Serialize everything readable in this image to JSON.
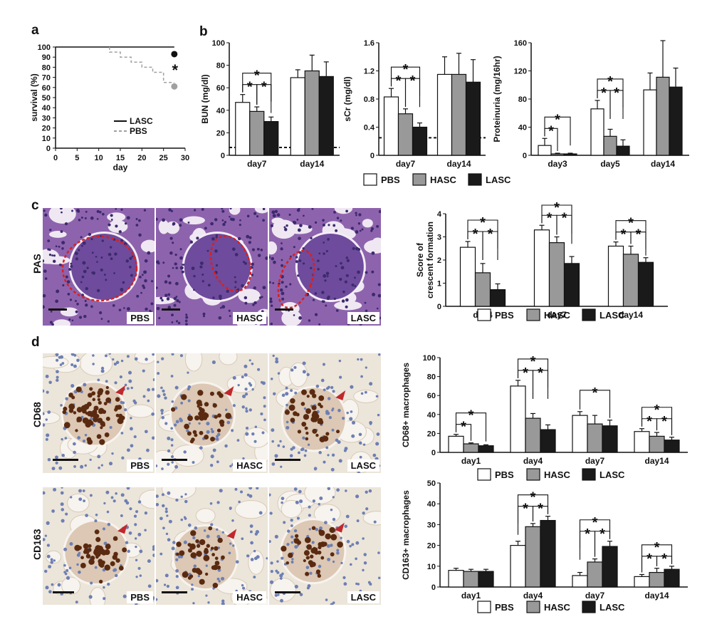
{
  "panels": {
    "a": "a",
    "b": "b",
    "c": "c",
    "d": "d"
  },
  "colors": {
    "PBS": "#ffffff",
    "HASC": "#999999",
    "LASC": "#1a1a1a",
    "pas_bg": "#8a5aa6",
    "ihc_bg": "#e9e1d6",
    "stain": "#5a2a10",
    "arrow": "#c0282c",
    "outline": "#d92020"
  },
  "legend": [
    "PBS",
    "HASC",
    "LASC"
  ],
  "micro": {
    "PAS": {
      "row_label": "PAS",
      "labels": [
        "PBS",
        "HASC",
        "LASC"
      ]
    },
    "CD68": {
      "row_label": "CD68",
      "labels": [
        "PBS",
        "HASC",
        "LASC"
      ]
    },
    "CD163": {
      "row_label": "CD163",
      "labels": [
        "PBS",
        "HASC",
        "LASC"
      ]
    }
  },
  "chart_data": [
    {
      "id": "survival",
      "type": "line",
      "ylabel": "survival (%)",
      "xlabel": "day",
      "xlim": [
        0,
        30
      ],
      "ylim": [
        0,
        100
      ],
      "xticks": [
        0,
        5,
        10,
        15,
        20,
        25,
        30
      ],
      "yticks": [
        0,
        10,
        20,
        30,
        40,
        50,
        60,
        70,
        80,
        90,
        100
      ],
      "series": [
        {
          "name": "LASC",
          "style": "solid",
          "color": "#111111",
          "x": [
            0,
            27.5
          ],
          "y": [
            100,
            100
          ],
          "end_marker": [
            27.5,
            93
          ]
        },
        {
          "name": "PBS",
          "style": "dashed",
          "color": "#a0a0a0",
          "x": [
            12.5,
            12.5,
            15,
            15,
            17.5,
            17.5,
            20,
            20,
            22.5,
            22.5,
            25,
            25,
            27.5
          ],
          "y": [
            100,
            95,
            95,
            90,
            90,
            85,
            85,
            80,
            80,
            75,
            75,
            65,
            65
          ],
          "end_marker": [
            27.5,
            61
          ]
        }
      ],
      "annotation": "*"
    },
    {
      "id": "BUN",
      "type": "bar",
      "ylabel": "BUN (mg/dl)",
      "ylim": [
        0,
        100
      ],
      "yticks": [
        0,
        20,
        40,
        60,
        80,
        100
      ],
      "categories": [
        "day7",
        "day14"
      ],
      "baseline": 7,
      "series": [
        {
          "name": "PBS",
          "values": [
            47,
            69
          ],
          "err": [
            7,
            7
          ]
        },
        {
          "name": "HASC",
          "values": [
            39,
            75
          ],
          "err": [
            4,
            14
          ]
        },
        {
          "name": "LASC",
          "values": [
            30,
            70
          ],
          "err": [
            4,
            13
          ]
        }
      ],
      "sig": [
        {
          "cat": 0,
          "pairs": [
            [
              0,
              2
            ],
            [
              0,
              1
            ],
            [
              1,
              2
            ]
          ]
        }
      ]
    },
    {
      "id": "sCr",
      "type": "bar",
      "ylabel": "sCr (mg/dl)",
      "ylim": [
        0,
        1.6
      ],
      "yticks": [
        0,
        0.4,
        0.8,
        1.2,
        1.6
      ],
      "ytick_labels": [
        "0",
        "0.4",
        "0.8",
        "1.2",
        "1.6"
      ],
      "categories": [
        "day7",
        "day14"
      ],
      "baseline": 0.25,
      "series": [
        {
          "name": "PBS",
          "values": [
            0.83,
            1.15
          ],
          "err": [
            0.12,
            0.25
          ]
        },
        {
          "name": "HASC",
          "values": [
            0.59,
            1.15
          ],
          "err": [
            0.07,
            0.3
          ]
        },
        {
          "name": "LASC",
          "values": [
            0.4,
            1.04
          ],
          "err": [
            0.06,
            0.32
          ]
        }
      ],
      "sig": [
        {
          "cat": 0,
          "pairs": [
            [
              0,
              2
            ],
            [
              0,
              1
            ],
            [
              1,
              2
            ]
          ]
        }
      ]
    },
    {
      "id": "Proteinuria",
      "type": "bar",
      "ylabel": "Proteinuria (mg/16hr)",
      "ylim": [
        0,
        160
      ],
      "yticks": [
        0,
        40,
        80,
        120,
        160
      ],
      "categories": [
        "day3",
        "day5",
        "day14"
      ],
      "series": [
        {
          "name": "PBS",
          "values": [
            14,
            66,
            93
          ],
          "err": [
            10,
            12,
            24
          ]
        },
        {
          "name": "HASC",
          "values": [
            2,
            27,
            111
          ],
          "err": [
            1,
            10,
            52
          ]
        },
        {
          "name": "LASC",
          "values": [
            2,
            13,
            97
          ],
          "err": [
            1,
            9,
            27
          ]
        }
      ],
      "sig": [
        {
          "cat": 0,
          "pairs": [
            [
              0,
              2
            ],
            [
              0,
              1
            ]
          ]
        },
        {
          "cat": 1,
          "pairs": [
            [
              0,
              2
            ],
            [
              0,
              1
            ],
            [
              1,
              2
            ]
          ]
        }
      ]
    },
    {
      "id": "crescent",
      "type": "bar",
      "ylabel": "Score of\ncrescent formation",
      "ylim": [
        0,
        4
      ],
      "yticks": [
        0,
        1,
        2,
        3,
        4
      ],
      "categories": [
        "day4",
        "day7",
        "day14"
      ],
      "series": [
        {
          "name": "PBS",
          "values": [
            2.55,
            3.3,
            2.6
          ],
          "err": [
            0.25,
            0.2,
            0.18
          ]
        },
        {
          "name": "HASC",
          "values": [
            1.45,
            2.75,
            2.25
          ],
          "err": [
            0.4,
            0.25,
            0.35
          ]
        },
        {
          "name": "LASC",
          "values": [
            0.72,
            1.85,
            1.9
          ],
          "err": [
            0.25,
            0.3,
            0.2
          ]
        }
      ],
      "sig": [
        {
          "cat": 0,
          "pairs": [
            [
              0,
              2
            ],
            [
              0,
              1
            ],
            [
              1,
              2
            ]
          ]
        },
        {
          "cat": 1,
          "pairs": [
            [
              0,
              2
            ],
            [
              0,
              1
            ],
            [
              1,
              2
            ]
          ]
        },
        {
          "cat": 2,
          "pairs": [
            [
              0,
              2
            ],
            [
              0,
              1
            ],
            [
              1,
              2
            ]
          ]
        }
      ]
    },
    {
      "id": "CD68",
      "type": "bar",
      "ylabel": "CD68+ macrophages",
      "ylim": [
        0,
        100
      ],
      "yticks": [
        0,
        20,
        40,
        60,
        80,
        100
      ],
      "categories": [
        "day1",
        "day4",
        "day7",
        "day14"
      ],
      "series": [
        {
          "name": "PBS",
          "values": [
            17,
            70,
            39,
            22
          ],
          "err": [
            2,
            6,
            4,
            3
          ]
        },
        {
          "name": "HASC",
          "values": [
            9,
            36,
            30,
            17
          ],
          "err": [
            1,
            5,
            9,
            4
          ]
        },
        {
          "name": "LASC",
          "values": [
            7,
            24,
            28,
            13
          ],
          "err": [
            1,
            5,
            6,
            3
          ]
        }
      ],
      "sig": [
        {
          "cat": 0,
          "pairs": [
            [
              0,
              2
            ],
            [
              0,
              1
            ]
          ]
        },
        {
          "cat": 1,
          "pairs": [
            [
              0,
              2
            ],
            [
              0,
              1
            ],
            [
              1,
              2
            ]
          ]
        },
        {
          "cat": 2,
          "pairs": [
            [
              0,
              2
            ]
          ]
        },
        {
          "cat": 3,
          "pairs": [
            [
              0,
              2
            ],
            [
              0,
              1
            ],
            [
              1,
              2
            ]
          ]
        }
      ]
    },
    {
      "id": "CD163",
      "type": "bar",
      "ylabel": "CD163+ macrophages",
      "ylim": [
        0,
        50
      ],
      "yticks": [
        0,
        10,
        20,
        30,
        40,
        50
      ],
      "categories": [
        "day1",
        "day4",
        "day7",
        "day14"
      ],
      "series": [
        {
          "name": "PBS",
          "values": [
            8,
            20,
            5.5,
            5
          ],
          "err": [
            1,
            2,
            1.5,
            1
          ]
        },
        {
          "name": "HASC",
          "values": [
            7.5,
            29,
            12,
            7
          ],
          "err": [
            1,
            1.5,
            1.5,
            2
          ]
        },
        {
          "name": "LASC",
          "values": [
            7.5,
            32,
            19.5,
            8.5
          ],
          "err": [
            1,
            2,
            2.5,
            1.5
          ]
        }
      ],
      "sig": [
        {
          "cat": 1,
          "pairs": [
            [
              0,
              2
            ],
            [
              0,
              1
            ],
            [
              1,
              2
            ]
          ]
        },
        {
          "cat": 2,
          "pairs": [
            [
              0,
              2
            ],
            [
              0,
              1
            ],
            [
              1,
              2
            ]
          ]
        },
        {
          "cat": 3,
          "pairs": [
            [
              0,
              2
            ],
            [
              0,
              1
            ],
            [
              1,
              2
            ]
          ]
        }
      ]
    }
  ]
}
